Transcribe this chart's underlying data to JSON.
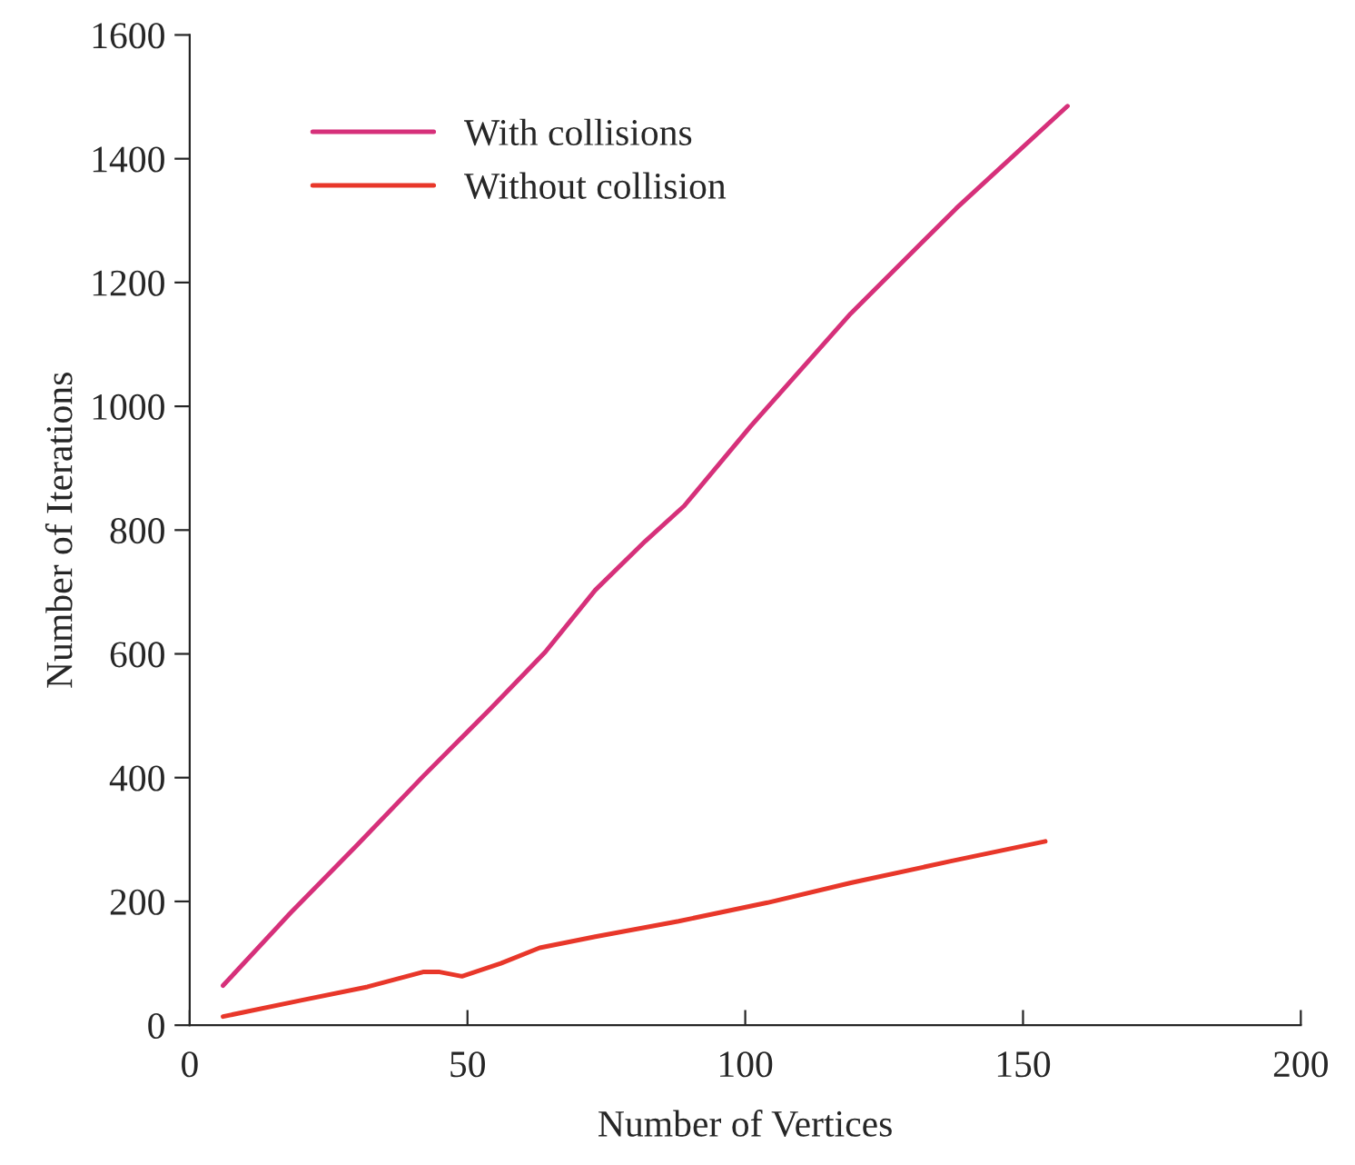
{
  "chart_data": {
    "type": "line",
    "xlabel": "Number of Vertices",
    "ylabel": "Number of Iterations",
    "xlim": [
      0,
      200
    ],
    "xticks": [
      0,
      50,
      100,
      150,
      200
    ],
    "ylim": [
      0,
      1600
    ],
    "yticks": [
      0,
      200,
      400,
      600,
      800,
      1000,
      1200,
      1400,
      1600
    ],
    "grid": false,
    "legend": "top left",
    "marker": "none",
    "line_style": "solid",
    "series": [
      {
        "name": "With collisions",
        "color": "#d6307a",
        "x": [
          6,
          18,
          30,
          42,
          54,
          64,
          73,
          82,
          89,
          101,
          119,
          138,
          158
        ],
        "values": [
          64,
          180,
          290,
          402,
          510,
          603,
          703,
          782,
          839,
          968,
          1150,
          1320,
          1485
        ]
      },
      {
        "name": "Without collision",
        "color": "#e8372a",
        "x": [
          6,
          20,
          32,
          42,
          45,
          49,
          56,
          63,
          73,
          88,
          104,
          119,
          137,
          154
        ],
        "values": [
          14,
          40,
          62,
          86,
          86,
          79,
          100,
          125,
          143,
          168,
          198,
          230,
          265,
          297
        ]
      }
    ]
  }
}
